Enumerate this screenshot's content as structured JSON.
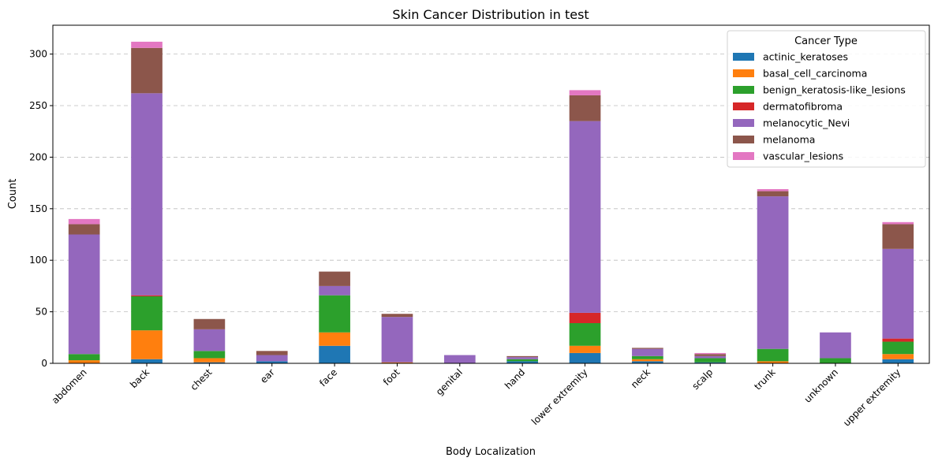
{
  "chart_data": {
    "type": "bar",
    "stacked": true,
    "title": "Skin Cancer Distribution in test",
    "xlabel": "Body Localization",
    "ylabel": "Count",
    "ylim": [
      0,
      328
    ],
    "yticks": [
      0,
      50,
      100,
      150,
      200,
      250,
      300
    ],
    "grid": "y-dashed",
    "legend_title": "Cancer Type",
    "legend_position": "top-right",
    "categories": [
      "abdomen",
      "back",
      "chest",
      "ear",
      "face",
      "foot",
      "genital",
      "hand",
      "lower extremity",
      "neck",
      "scalp",
      "trunk",
      "unknown",
      "upper extremity"
    ],
    "series": [
      {
        "name": "actinic_keratoses",
        "color": "#1f77b4",
        "values": [
          0,
          4,
          1,
          2,
          17,
          0,
          0,
          2,
          10,
          2,
          1,
          0,
          0,
          4
        ]
      },
      {
        "name": "basal_cell_carcinoma",
        "color": "#ff7f0e",
        "values": [
          3,
          28,
          4,
          0,
          13,
          1,
          0,
          0,
          7,
          2,
          0,
          2,
          0,
          5
        ]
      },
      {
        "name": "benign_keratosis-like_lesions",
        "color": "#2ca02c",
        "values": [
          6,
          33,
          7,
          0,
          36,
          0,
          0,
          2,
          22,
          3,
          4,
          12,
          5,
          12
        ]
      },
      {
        "name": "dermatofibroma",
        "color": "#d62728",
        "values": [
          0,
          1,
          0,
          0,
          0,
          0,
          0,
          0,
          10,
          0,
          0,
          0,
          0,
          3
        ]
      },
      {
        "name": "melanocytic_Nevi",
        "color": "#9467bd",
        "values": [
          116,
          196,
          21,
          6,
          9,
          44,
          8,
          2,
          186,
          7,
          2,
          148,
          25,
          87
        ]
      },
      {
        "name": "melanoma",
        "color": "#8c564b",
        "values": [
          10,
          44,
          10,
          4,
          14,
          3,
          0,
          1,
          25,
          1,
          2,
          5,
          0,
          24
        ]
      },
      {
        "name": "vascular_lesions",
        "color": "#e377c2",
        "values": [
          5,
          6,
          0,
          0,
          0,
          0,
          0,
          0,
          5,
          0,
          1,
          2,
          0,
          2
        ]
      }
    ]
  }
}
